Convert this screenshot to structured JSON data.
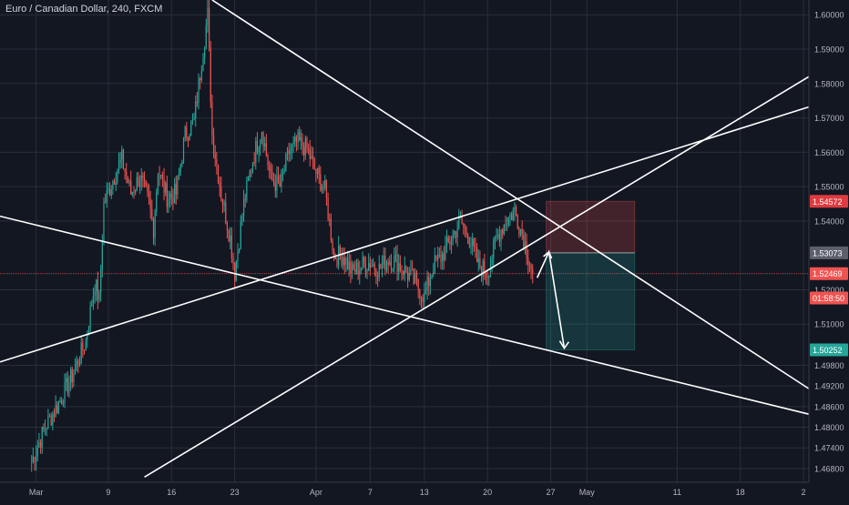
{
  "header": {
    "symbol_title": "Euro / Canadian Dollar, 240, FXCM"
  },
  "colors": {
    "background": "#131722",
    "grid": "#2a2e39",
    "up": "#26a69a",
    "down": "#ef5350",
    "trendline": "#ffffff",
    "stop_zone": "#4a2530",
    "target_zone": "#123a3c",
    "current_price_line": "#ef5350",
    "axis_text": "#b2b5be"
  },
  "chart_data": {
    "type": "candlestick",
    "title": "Euro / Canadian Dollar, 240, FXCM",
    "y_axis": {
      "position": "right",
      "ylim": [
        1.464,
        1.6043
      ],
      "tick_labels": [
        "1.60000",
        "1.59000",
        "1.58000",
        "1.57000",
        "1.56000",
        "1.55000",
        "1.54000",
        "1.52000",
        "1.51000",
        "1.49800",
        "1.49200",
        "1.48600",
        "1.48000",
        "1.47400",
        "1.46800"
      ],
      "tick_values": [
        1.6,
        1.59,
        1.58,
        1.57,
        1.56,
        1.55,
        1.54,
        1.52,
        1.51,
        1.498,
        1.492,
        1.486,
        1.48,
        1.474,
        1.468
      ]
    },
    "x_axis": {
      "tick_labels": [
        "Mar",
        "9",
        "16",
        "23",
        "Apr",
        "7",
        "13",
        "20",
        "27",
        "May",
        "11",
        "18",
        "2"
      ],
      "tick_days": [
        1,
        9,
        16,
        23,
        32,
        38,
        44,
        51,
        58,
        62,
        72,
        79,
        86
      ],
      "xlim_days": [
        -3,
        86.6
      ],
      "day_note": "days counted from Mar 0"
    },
    "grid": true,
    "price_labels": [
      {
        "text": "1.54572",
        "value": 1.54572,
        "kind": "stop"
      },
      {
        "text": "1.53073",
        "value": 1.53073,
        "kind": "entry"
      },
      {
        "text": "1.52469",
        "value": 1.52469,
        "kind": "current"
      },
      {
        "text": "01:58:50",
        "value": 1.5176,
        "kind": "countdown"
      },
      {
        "text": "1.50252",
        "value": 1.50252,
        "kind": "target"
      }
    ],
    "series": [
      {
        "ohlc_key_points": [
          [
            0.5,
            1.47
          ],
          [
            2,
            1.48
          ],
          [
            3.5,
            1.487
          ],
          [
            5,
            1.495
          ],
          [
            6.5,
            1.505
          ],
          [
            7.5,
            1.522
          ],
          [
            8,
            1.517
          ],
          [
            8.5,
            1.545
          ],
          [
            9.5,
            1.552
          ],
          [
            10.5,
            1.558
          ],
          [
            11.5,
            1.548
          ],
          [
            12.5,
            1.553
          ],
          [
            13.5,
            1.545
          ],
          [
            14,
            1.538
          ],
          [
            14.5,
            1.555
          ],
          [
            15.5,
            1.547
          ],
          [
            16.5,
            1.548
          ],
          [
            17.5,
            1.565
          ],
          [
            18.5,
            1.569
          ],
          [
            19.5,
            1.59
          ],
          [
            20,
            1.6
          ],
          [
            20.5,
            1.565
          ],
          [
            21.5,
            1.548
          ],
          [
            22.5,
            1.535
          ],
          [
            23,
            1.525
          ],
          [
            24,
            1.545
          ],
          [
            25,
            1.558
          ],
          [
            26,
            1.567
          ],
          [
            27,
            1.552
          ],
          [
            28,
            1.55
          ],
          [
            29,
            1.56
          ],
          [
            30,
            1.563
          ],
          [
            31,
            1.561
          ],
          [
            32,
            1.554
          ],
          [
            33,
            1.549
          ],
          [
            34,
            1.53
          ],
          [
            35,
            1.53
          ],
          [
            36,
            1.525
          ],
          [
            37,
            1.527
          ],
          [
            38,
            1.528
          ],
          [
            39,
            1.526
          ],
          [
            40,
            1.529
          ],
          [
            41,
            1.528
          ],
          [
            42,
            1.525
          ],
          [
            43,
            1.522
          ],
          [
            44,
            1.518
          ],
          [
            45,
            1.527
          ],
          [
            46,
            1.53
          ],
          [
            47,
            1.535
          ],
          [
            48,
            1.54
          ],
          [
            49,
            1.535
          ],
          [
            50,
            1.527
          ],
          [
            51,
            1.525
          ],
          [
            52,
            1.535
          ],
          [
            53,
            1.54
          ],
          [
            54,
            1.543
          ],
          [
            55,
            1.535
          ],
          [
            55.5,
            1.53
          ],
          [
            56,
            1.5247
          ]
        ]
      }
    ],
    "trendlines_price_day": [
      {
        "p1": [
          20.5,
          1.6043
        ],
        "p2": [
          86.6,
          1.4912
        ]
      },
      {
        "p1": [
          -3,
          1.5414
        ],
        "p2": [
          86.6,
          1.4838
        ]
      },
      {
        "p1": [
          -3,
          1.499
        ],
        "p2": [
          86.6,
          1.5732
        ]
      },
      {
        "p1": [
          13,
          1.4655
        ],
        "p2": [
          86.6,
          1.582
        ]
      }
    ],
    "position_tool": {
      "entry": 1.53073,
      "stop": 1.54572,
      "target": 1.50252,
      "start_day": 57.5,
      "end_day": 67.3
    },
    "projected_path_price_day": [
      [
        56.5,
        1.5235
      ],
      [
        57.8,
        1.531
      ],
      [
        59.5,
        1.503
      ]
    ]
  }
}
